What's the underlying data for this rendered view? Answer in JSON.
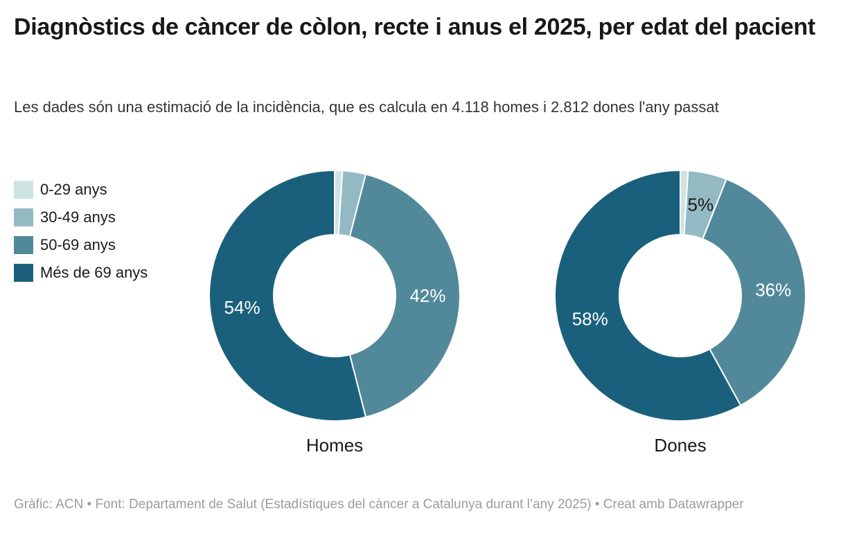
{
  "header": {
    "title": "Diagnòstics de càncer de còlon, recte i anus el 2025, per edat del pacient",
    "subtitle": "Les dades són una estimació de la incidència, que es calcula en 4.118 homes i 2.812 dones l'any passat"
  },
  "footer": {
    "text": "Gràfic: ACN • Font: Departament de Salut (Estadístiques del càncer a Catalunya durant l’any 2025) • Creat amb Datawrapper"
  },
  "chart_data": {
    "type": "pie",
    "subtype": "donut",
    "legend_position": "top-left",
    "categories": [
      "0-29 anys",
      "30-49 anys",
      "50-69 anys",
      "Més de 69 anys"
    ],
    "colors": [
      "#cfe3e3",
      "#93bac2",
      "#52899a",
      "#1a607d"
    ],
    "slice_border_color": "#ffffff",
    "charts": [
      {
        "label": "Homes",
        "values": [
          1,
          3,
          42,
          54
        ],
        "slice_labels": [
          "",
          "",
          "42%",
          "54%"
        ],
        "slice_label_colors": [
          "",
          "",
          "#ffffff",
          "#ffffff"
        ]
      },
      {
        "label": "Dones",
        "values": [
          1,
          5,
          36,
          58
        ],
        "slice_labels": [
          "",
          "5%",
          "36%",
          "58%"
        ],
        "slice_label_colors": [
          "",
          "#1a1a1a",
          "#ffffff",
          "#ffffff"
        ]
      }
    ]
  }
}
